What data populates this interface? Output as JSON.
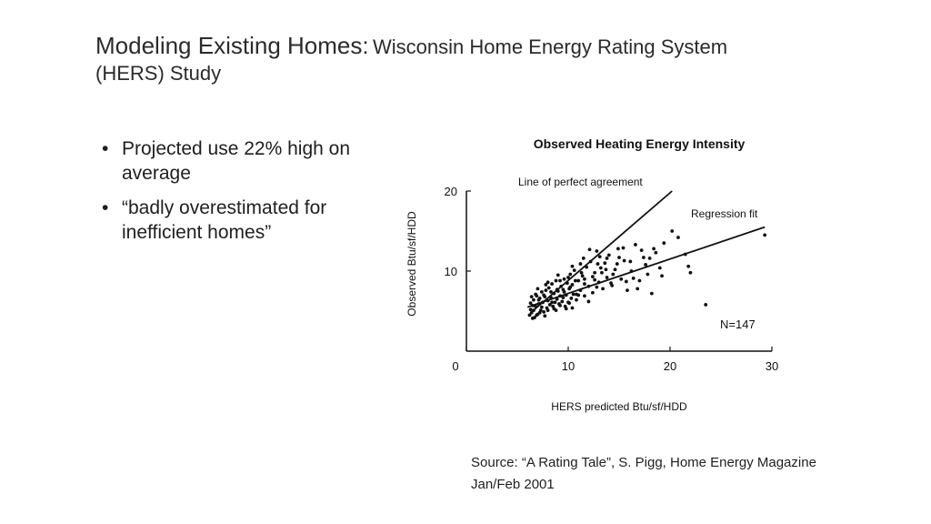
{
  "slide": {
    "title_main": "Modeling Existing Homes:",
    "title_sub": "Wisconsin Home Energy Rating System (HERS) Study",
    "bullets": [
      "Projected use 22% high on average",
      "“badly overestimated for inefficient homes”"
    ],
    "bullet_glyph": "•",
    "source": "Source: “A Rating Tale”, S. Pigg, Home Energy Magazine Jan/Feb 2001"
  },
  "chart_data": {
    "type": "scatter",
    "title": "Observed Heating Energy Intensity",
    "xlabel": "HERS predicted Btu/sf/HDD",
    "ylabel": "Observed Btu/sf/HDD",
    "xlim": [
      0,
      30
    ],
    "ylim": [
      0,
      20
    ],
    "xticks": [
      "0",
      "10",
      "20",
      "30"
    ],
    "yticks": [
      "10",
      "20"
    ],
    "grid": false,
    "annotations": {
      "perfect_line_label": "Line of perfect agreement",
      "regression_label": "Regression fit",
      "n_label": "N=147"
    },
    "lines": [
      {
        "name": "Line of perfect agreement",
        "x": [
          6.5,
          20.2
        ],
        "y": [
          5.0,
          20.0
        ]
      },
      {
        "name": "Regression fit",
        "x": [
          6.0,
          29.3
        ],
        "y": [
          5.5,
          15.5
        ]
      }
    ],
    "series": [
      {
        "values": [
          [
            6.2,
            4.5
          ],
          [
            6.3,
            5.2
          ],
          [
            6.4,
            4.8
          ],
          [
            6.5,
            5.7
          ],
          [
            6.6,
            6.4
          ],
          [
            6.7,
            4.2
          ],
          [
            6.8,
            5.6
          ],
          [
            6.9,
            6.9
          ],
          [
            7.0,
            4.6
          ],
          [
            7.1,
            5.9
          ],
          [
            7.2,
            6.6
          ],
          [
            7.3,
            5.1
          ],
          [
            7.4,
            7.4
          ],
          [
            7.5,
            6.1
          ],
          [
            7.6,
            4.9
          ],
          [
            7.7,
            6.8
          ],
          [
            7.8,
            7.6
          ],
          [
            7.9,
            5.4
          ],
          [
            8.0,
            6.3
          ],
          [
            8.1,
            7.9
          ],
          [
            8.2,
            5.8
          ],
          [
            8.3,
            6.7
          ],
          [
            8.4,
            8.4
          ],
          [
            8.5,
            5.6
          ],
          [
            8.6,
            7.2
          ],
          [
            8.7,
            6.1
          ],
          [
            8.8,
            8.8
          ],
          [
            8.9,
            6.5
          ],
          [
            9.0,
            7.5
          ],
          [
            9.1,
            5.9
          ],
          [
            9.2,
            6.9
          ],
          [
            9.3,
            8.1
          ],
          [
            9.4,
            6.2
          ],
          [
            9.5,
            7.7
          ],
          [
            9.6,
            9.0
          ],
          [
            9.7,
            5.6
          ],
          [
            9.8,
            7.0
          ],
          [
            9.9,
            8.5
          ],
          [
            10.0,
            6.1
          ],
          [
            10.1,
            7.8
          ],
          [
            10.2,
            9.6
          ],
          [
            10.3,
            6.6
          ],
          [
            10.4,
            8.3
          ],
          [
            10.5,
            7.1
          ],
          [
            10.6,
            10.1
          ],
          [
            10.8,
            6.4
          ],
          [
            11.0,
            8.8
          ],
          [
            11.2,
            7.6
          ],
          [
            11.4,
            9.4
          ],
          [
            11.6,
            6.9
          ],
          [
            11.8,
            10.5
          ],
          [
            12.0,
            8.1
          ],
          [
            12.2,
            11.2
          ],
          [
            12.4,
            7.3
          ],
          [
            12.6,
            9.8
          ],
          [
            12.8,
            12.5
          ],
          [
            13.0,
            8.6
          ],
          [
            13.2,
            10.4
          ],
          [
            13.4,
            7.8
          ],
          [
            13.6,
            11.0
          ],
          [
            13.8,
            9.2
          ],
          [
            14.0,
            12.0
          ],
          [
            14.3,
            8.2
          ],
          [
            14.6,
            10.2
          ],
          [
            14.9,
            12.8
          ],
          [
            15.2,
            9.0
          ],
          [
            15.5,
            11.3
          ],
          [
            15.8,
            7.6
          ],
          [
            16.2,
            10.0
          ],
          [
            16.6,
            13.3
          ],
          [
            17.0,
            8.8
          ],
          [
            17.4,
            11.7
          ],
          [
            17.8,
            9.6
          ],
          [
            18.2,
            7.2
          ],
          [
            18.6,
            12.3
          ],
          [
            19.0,
            10.4
          ],
          [
            19.4,
            13.5
          ],
          [
            20.2,
            15.0
          ],
          [
            20.8,
            14.2
          ],
          [
            21.8,
            10.6
          ],
          [
            22.0,
            9.8
          ],
          [
            23.5,
            5.8
          ],
          [
            29.3,
            14.5
          ],
          [
            6.3,
            6.0
          ],
          [
            6.6,
            5.1
          ],
          [
            6.9,
            4.5
          ],
          [
            7.1,
            6.4
          ],
          [
            7.4,
            5.5
          ],
          [
            7.7,
            4.4
          ],
          [
            8.0,
            5.1
          ],
          [
            8.3,
            7.4
          ],
          [
            8.6,
            5.3
          ],
          [
            8.9,
            7.7
          ],
          [
            9.2,
            5.7
          ],
          [
            9.5,
            6.7
          ],
          [
            9.8,
            5.3
          ],
          [
            10.1,
            6.0
          ],
          [
            10.4,
            5.4
          ],
          [
            10.7,
            8.8
          ],
          [
            11.0,
            7.0
          ],
          [
            11.3,
            9.8
          ],
          [
            11.6,
            8.4
          ],
          [
            12.0,
            6.2
          ],
          [
            12.4,
            9.3
          ],
          [
            12.8,
            8.0
          ],
          [
            13.3,
            9.8
          ],
          [
            13.8,
            11.6
          ],
          [
            14.4,
            9.6
          ],
          [
            15.0,
            11.7
          ],
          [
            15.7,
            8.7
          ],
          [
            16.4,
            9.1
          ],
          [
            17.2,
            12.6
          ],
          [
            18.0,
            11.6
          ],
          [
            6.4,
            6.8
          ],
          [
            6.8,
            7.1
          ],
          [
            7.2,
            4.8
          ],
          [
            7.6,
            7.0
          ],
          [
            8.0,
            8.6
          ],
          [
            8.4,
            6.1
          ],
          [
            8.8,
            5.1
          ],
          [
            9.2,
            8.8
          ],
          [
            9.6,
            7.4
          ],
          [
            10.0,
            9.2
          ],
          [
            10.4,
            10.6
          ],
          [
            10.8,
            7.1
          ],
          [
            11.2,
            10.9
          ],
          [
            11.6,
            9.0
          ],
          [
            12.1,
            12.7
          ],
          [
            12.6,
            8.9
          ],
          [
            13.1,
            11.8
          ],
          [
            13.7,
            10.2
          ],
          [
            14.2,
            8.5
          ],
          [
            14.8,
            10.9
          ],
          [
            15.4,
            12.9
          ],
          [
            16.1,
            11.2
          ],
          [
            16.8,
            7.8
          ],
          [
            17.6,
            10.8
          ],
          [
            18.4,
            12.8
          ],
          [
            19.2,
            9.4
          ],
          [
            21.5,
            12.1
          ],
          [
            7.0,
            7.8
          ],
          [
            7.8,
            8.3
          ],
          [
            9.0,
            9.5
          ],
          [
            10.2,
            8.0
          ],
          [
            11.5,
            11.6
          ],
          [
            12.9,
            10.9
          ],
          [
            6.5,
            4.1
          ]
        ]
      }
    ]
  }
}
